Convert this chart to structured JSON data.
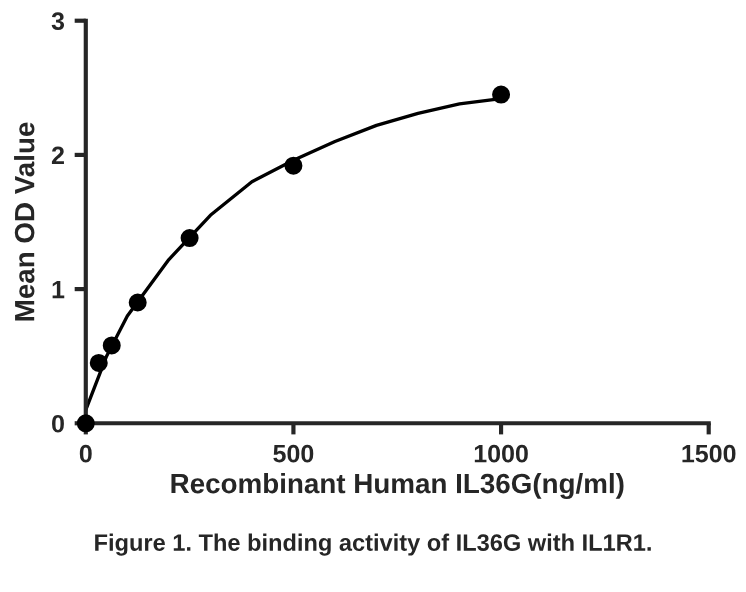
{
  "chart_data": {
    "type": "scatter",
    "xlabel": "Recombinant Human IL36G(ng/ml)",
    "ylabel": "Mean OD Value",
    "annotations": [
      "Figure 1. The binding activity of IL36G with IL1R1."
    ],
    "xlim": [
      0,
      1500
    ],
    "xticks": [
      0,
      500,
      1000,
      1500
    ],
    "ylim": [
      0,
      3
    ],
    "yticks": [
      0,
      1,
      2,
      3
    ],
    "grid": false,
    "series": [
      {
        "marker": "circle",
        "color": "#000000",
        "x": [
          0,
          31.25,
          62.5,
          125,
          250,
          500,
          1000
        ],
        "values": [
          0,
          0.45,
          0.58,
          0.9,
          1.38,
          1.92,
          2.45
        ]
      },
      {
        "type": "line",
        "marker": "none",
        "color": "#000000",
        "line_style": "solid",
        "x": [
          0,
          50,
          100,
          200,
          300,
          400,
          500,
          600,
          700,
          800,
          900,
          1000
        ],
        "values": [
          0.1,
          0.5,
          0.8,
          1.22,
          1.55,
          1.8,
          1.96,
          2.1,
          2.22,
          2.31,
          2.38,
          2.42
        ]
      }
    ]
  }
}
